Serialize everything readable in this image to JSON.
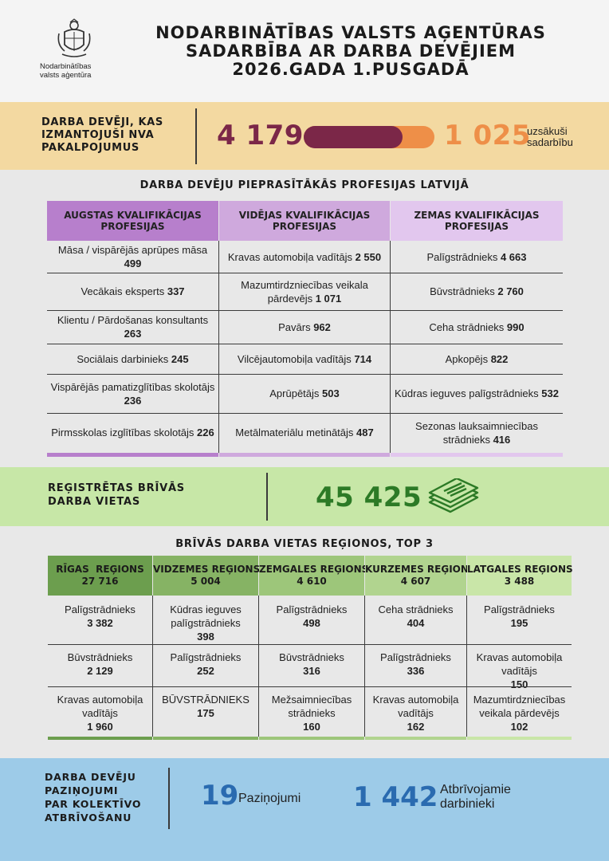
{
  "header": {
    "logo_text": "Nodarbinātības\nvalsts aģentūra",
    "title": "NODARBINĀTĪBAS VALSTS AĢENTŪRAS\nSADARBĪBA AR DARBA DEVĒJIEM\n2026.GADA 1.PUSGADĀ"
  },
  "employers": {
    "label": "DARBA DEVĒJI, KAS\nIZMANTOJUŠI NVA\nPAKALPOJUMUS",
    "used_count": "4 179",
    "cooperation_count": "1 025",
    "cooperation_note": "uzsākuši\nsadarbību",
    "bar_fraction": 0.755,
    "colors": {
      "used": "#7b2748",
      "cooperation": "#ee8f48"
    }
  },
  "professions": {
    "title": "DARBA DEVĒJU PIEPRASĪTĀKĀS PROFESIJAS LATVIJĀ",
    "columns": [
      {
        "header": "AUGSTAS KVALIFIKĀCIJAS\nPROFESIJAS",
        "color": "#b77fcc",
        "rows": [
          {
            "name": "Māsa / vispārējās aprūpes māsa",
            "value": "499"
          },
          {
            "name": "Vecākais eksperts",
            "value": "337"
          },
          {
            "name": "Klientu / Pārdošanas konsultants",
            "value": "263"
          },
          {
            "name": "Sociālais darbinieks",
            "value": "245"
          },
          {
            "name": "Vispārējās pamatizglītības skolotājs",
            "value": "236"
          },
          {
            "name": "Pirmsskolas izglītības skolotājs",
            "value": "226"
          }
        ]
      },
      {
        "header": "VIDĒJAS KVALIFIKĀCIJAS\nPROFESIJAS",
        "color": "#cfa9dd",
        "rows": [
          {
            "name": "Kravas automobiļa vadītājs",
            "value": "2 550"
          },
          {
            "name": "Mazumtirdzniecības veikala pārdevējs",
            "value": "1 071"
          },
          {
            "name": "Pavārs",
            "value": "962"
          },
          {
            "name": "Vilcējautomobiļa vadītājs",
            "value": "714"
          },
          {
            "name": "Aprūpētājs",
            "value": "503"
          },
          {
            "name": "Metālmateriālu metinātājs",
            "value": "487"
          }
        ]
      },
      {
        "header": "ZEMAS KVALIFIKĀCIJAS\nPROFESIJAS",
        "color": "#e2c7ee",
        "rows": [
          {
            "name": "Palīgstrādnieks",
            "value": "4 663"
          },
          {
            "name": "Būvstrādnieks",
            "value": "2 760"
          },
          {
            "name": "Ceha strādnieks",
            "value": "990"
          },
          {
            "name": "Apkopējs",
            "value": "822"
          },
          {
            "name": "Kūdras ieguves palīgstrādnieks",
            "value": "532"
          },
          {
            "name": "Sezonas lauksaimniecības strādnieks",
            "value": "416"
          }
        ]
      }
    ]
  },
  "vacancies": {
    "label": "REĢISTRĒTAS BRĪVĀS\nDARBA VIETAS",
    "value": "45 425",
    "icon": "documents-icon"
  },
  "regions": {
    "title": "BRĪVĀS DARBA VIETAS REĢIONOS, TOP 3",
    "columns": [
      {
        "name": "RĪGAS  REĢIONS",
        "total": "27 716",
        "color": "#6c9e4e",
        "rows": [
          {
            "name": "Palīgstrādnieks",
            "value": "3 382"
          },
          {
            "name": "Būvstrādnieks",
            "value": "2 129"
          },
          {
            "name": "Kravas automobiļa vadītājs",
            "value": "1 960"
          }
        ]
      },
      {
        "name": "VIDZEMES REĢIONS",
        "total": "5 004",
        "color": "#86b364",
        "rows": [
          {
            "name": "Kūdras ieguves palīgstrādnieks",
            "value": "398"
          },
          {
            "name": "Palīgstrādnieks",
            "value": "252"
          },
          {
            "name": "BŪVSTRĀDNIEKS",
            "value": "175"
          }
        ]
      },
      {
        "name": "ZEMGALES REĢIONS",
        "total": "4 610",
        "color": "#9dc67a",
        "rows": [
          {
            "name": "Palīgstrādnieks",
            "value": "498"
          },
          {
            "name": "Būvstrādnieks",
            "value": "316"
          },
          {
            "name": "Mežsaimniecības strādnieks",
            "value": "160"
          }
        ]
      },
      {
        "name": "KURZEMES REĢIONS",
        "total": "4 607",
        "color": "#b1d48f",
        "rows": [
          {
            "name": "Ceha strādnieks",
            "value": "404"
          },
          {
            "name": "Palīgstrādnieks",
            "value": "336"
          },
          {
            "name": "Kravas automobiļa vadītājs",
            "value": "162"
          }
        ]
      },
      {
        "name": "LATGALES REĢIONS",
        "total": "3 488",
        "color": "#c9e6a8",
        "rows": [
          {
            "name": "Palīgstrādnieks",
            "value": "195"
          },
          {
            "name": "Kravas automobiļa vadītājs",
            "value": "150"
          },
          {
            "name": "Mazumtirdzniecības veikala pārdevējs",
            "value": "102"
          }
        ]
      }
    ]
  },
  "layoffs": {
    "label": "DARBA DEVĒJU\nPAZIŅOJUMI\nPAR KOLEKTĪVO\nATBRĪVOŠANU",
    "notices_value": "19",
    "notices_label": "Paziņojumi",
    "workers_value": "1 442",
    "workers_label": "Atbrīvojamie\ndarbinieki"
  }
}
